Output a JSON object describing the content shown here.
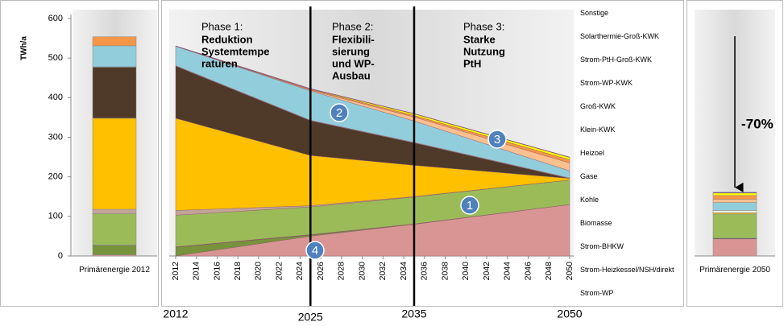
{
  "chart_data": [
    {
      "type": "bar",
      "ylabel": "TWh/a",
      "ylim": [
        0,
        600
      ],
      "yticks": [
        0,
        100,
        200,
        300,
        400,
        500,
        600
      ],
      "categories": [
        "Primärenergie 2012"
      ],
      "series": [
        {
          "color": "#d99594",
          "values": [
            3
          ]
        },
        {
          "color": "#77933c",
          "values": [
            24
          ]
        },
        {
          "color": "#632523",
          "values": [
            1
          ]
        },
        {
          "color": "#9bbb59",
          "values": [
            79
          ]
        },
        {
          "color": "#c4a49a",
          "values": [
            11
          ]
        },
        {
          "color": "#ffc000",
          "values": [
            230
          ]
        },
        {
          "color": "#4f3a2a",
          "values": [
            129
          ]
        },
        {
          "color": "#ebf1de",
          "values": [
            1
          ]
        },
        {
          "color": "#92cddc",
          "values": [
            53
          ]
        },
        {
          "color": "#fac090",
          "values": [
            0
          ]
        },
        {
          "color": "#f79646",
          "values": [
            23
          ]
        },
        {
          "color": "#ffff00",
          "values": [
            0
          ]
        },
        {
          "color": "#7030a0",
          "values": [
            0
          ]
        }
      ]
    },
    {
      "type": "area",
      "x": [
        2012,
        2025,
        2035,
        2050
      ],
      "xlim": [
        2012,
        2050
      ],
      "xticks": [
        2012,
        2014,
        2016,
        2018,
        2020,
        2022,
        2024,
        2026,
        2028,
        2030,
        2032,
        2034,
        2036,
        2038,
        2040,
        2042,
        2044,
        2046,
        2048,
        2050
      ],
      "series": [
        {
          "name": "Strom-WP",
          "color": "#d99594",
          "values": [
            0,
            50,
            80,
            130
          ]
        },
        {
          "name": "Strom-Heizkessel/NSH/direkt",
          "color": "#77933c",
          "values": [
            22,
            3,
            1,
            0
          ]
        },
        {
          "name": "Strom-BHKW",
          "color": "#632523",
          "values": [
            1,
            1,
            0,
            0
          ]
        },
        {
          "name": "Biomasse",
          "color": "#9bbb59",
          "values": [
            80,
            70,
            68,
            62
          ]
        },
        {
          "name": "Kohle",
          "color": "#c4a49a",
          "values": [
            12,
            3,
            1,
            0
          ]
        },
        {
          "name": "Gase",
          "color": "#ffc000",
          "values": [
            233,
            127,
            79,
            4
          ]
        },
        {
          "name": "Heizoel",
          "color": "#4f3a2a",
          "values": [
            132,
            88,
            57,
            0
          ]
        },
        {
          "name": "Klein-KWK",
          "color": "#ebf1de",
          "values": [
            1,
            1,
            1,
            1
          ]
        },
        {
          "name": "Groß-KWK",
          "color": "#92cddc",
          "values": [
            49,
            74,
            54,
            18
          ]
        },
        {
          "name": "Strom-WP-KWK",
          "color": "#fac090",
          "values": [
            0,
            2,
            10,
            20
          ]
        },
        {
          "name": "Strom-PtH-Groß-KWK",
          "color": "#f79646",
          "values": [
            0,
            2,
            4,
            8
          ]
        },
        {
          "name": "Solarthermie-Groß-KWK",
          "color": "#ffff00",
          "values": [
            0,
            1,
            4,
            6
          ]
        },
        {
          "name": "Sonstige",
          "color": "#7030a0",
          "values": [
            1,
            1,
            1,
            1
          ]
        }
      ],
      "phases": [
        {
          "label": "Phase 1:",
          "lines": [
            "Reduktion",
            "Systemtempe",
            "raturen"
          ]
        },
        {
          "label": "Phase 2:",
          "lines": [
            "Flexibili-",
            "sierung",
            "und WP-",
            "Ausbau"
          ]
        },
        {
          "label": "Phase 3:",
          "lines": [
            "Starke",
            "Nutzung",
            "PtH"
          ]
        }
      ],
      "markers": [
        "1",
        "2",
        "3",
        "4"
      ],
      "period_labels": [
        2012,
        2025,
        2035,
        2050
      ]
    },
    {
      "type": "bar",
      "annotation": "-70%",
      "categories": [
        "Primärenergie 2050"
      ],
      "series": [
        {
          "color": "#d99594",
          "values": [
            43
          ]
        },
        {
          "color": "#77933c",
          "values": [
            0
          ]
        },
        {
          "color": "#632523",
          "values": [
            2
          ]
        },
        {
          "color": "#9bbb59",
          "values": [
            61
          ]
        },
        {
          "color": "#c4a49a",
          "values": [
            0
          ]
        },
        {
          "color": "#ffc000",
          "values": [
            3
          ]
        },
        {
          "color": "#4f3a2a",
          "values": [
            0
          ]
        },
        {
          "color": "#ebf1de",
          "values": [
            6
          ]
        },
        {
          "color": "#92cddc",
          "values": [
            20
          ]
        },
        {
          "color": "#fac090",
          "values": [
            8
          ]
        },
        {
          "color": "#f79646",
          "values": [
            10
          ]
        },
        {
          "color": "#ffff00",
          "values": [
            6
          ]
        },
        {
          "color": "#7030a0",
          "values": [
            2
          ]
        }
      ]
    }
  ]
}
